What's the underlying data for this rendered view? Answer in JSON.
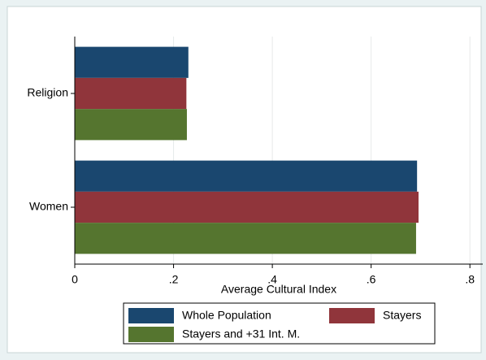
{
  "chart_data": {
    "type": "barh",
    "x_label": "Average Cultural Index",
    "categories": [
      "Religion",
      "Women"
    ],
    "series": [
      {
        "name": "Whole Population",
        "color": "#1a476f",
        "values": [
          0.23,
          0.693
        ]
      },
      {
        "name": "Stayers",
        "color": "#90353b",
        "values": [
          0.226,
          0.696
        ]
      },
      {
        "name": "Stayers and +31 Int. M.",
        "color": "#55752f",
        "values": [
          0.227,
          0.691
        ]
      }
    ],
    "xlim": [
      0,
      0.826
    ],
    "xticks": [
      0,
      {
        "value": 0.2,
        "label": ".2"
      },
      {
        "value": 0.4,
        "label": ".4"
      },
      {
        "value": 0.6,
        "label": ".6"
      },
      {
        "value": 0.8,
        "label": ".8"
      }
    ],
    "grid": true,
    "legend": "bottom"
  }
}
